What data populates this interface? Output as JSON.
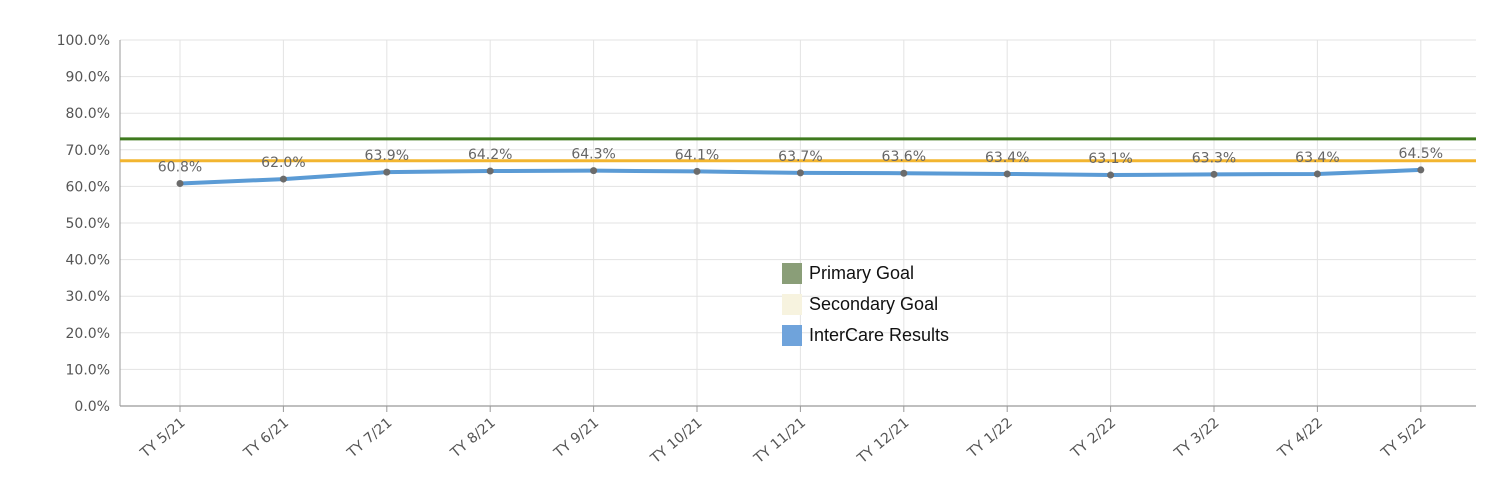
{
  "chart_data": {
    "type": "line",
    "categories": [
      "TY 5/21",
      "TY 6/21",
      "TY 7/21",
      "TY 8/21",
      "TY 9/21",
      "TY 10/21",
      "TY 11/21",
      "TY 12/21",
      "TY 1/22",
      "TY 2/22",
      "TY 3/22",
      "TY 4/22",
      "TY 5/22"
    ],
    "series": [
      {
        "name": "Primary Goal",
        "kind": "reference",
        "value": 73.0,
        "color": "#3f7a1e"
      },
      {
        "name": "Secondary Goal",
        "kind": "reference",
        "value": 67.0,
        "color": "#f2b530"
      },
      {
        "name": "InterCare Results",
        "kind": "line",
        "color": "#5b9bd5",
        "values": [
          60.8,
          62.0,
          63.9,
          64.2,
          64.3,
          64.1,
          63.7,
          63.6,
          63.4,
          63.1,
          63.3,
          63.4,
          64.5
        ],
        "labels": [
          "60.8%",
          "62.0%",
          "63.9%",
          "64.2%",
          "64.3%",
          "64.1%",
          "63.7%",
          "63.6%",
          "63.4%",
          "63.1%",
          "63.3%",
          "63.4%",
          "64.5%"
        ]
      }
    ],
    "yticks": [
      "0.0%",
      "10.0%",
      "20.0%",
      "30.0%",
      "40.0%",
      "50.0%",
      "60.0%",
      "70.0%",
      "80.0%",
      "90.0%",
      "100.0%"
    ],
    "ylim": [
      0,
      100
    ],
    "grid": true,
    "legend": {
      "position": "center-right",
      "items": [
        {
          "label": "Primary Goal",
          "color": "#8a9e78"
        },
        {
          "label": "Secondary Goal",
          "color": "#f7f3df"
        },
        {
          "label": "InterCare Results",
          "color": "#6fa3db"
        }
      ]
    }
  }
}
